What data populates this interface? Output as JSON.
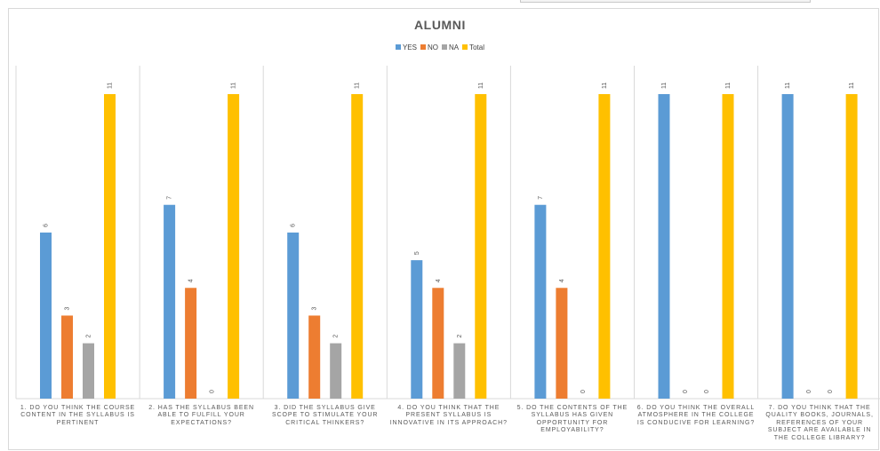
{
  "chart_data": {
    "type": "bar",
    "title": "ALUMNI",
    "categories": [
      "1. DO YOU THINK THE COURSE CONTENT IN THE SYLLABUS IS PERTINENT",
      "2. HAS THE SYLLABUS BEEN ABLE TO FULFILL YOUR EXPECTATIONS?",
      "3. DID THE SYLLABUS GIVE SCOPE TO STIMULATE YOUR CRITICAL THINKERS?",
      "4. DO YOU THINK THAT THE PRESENT SYLLABUS IS INNOVATIVE IN ITS APPROACH?",
      "5. DO THE CONTENTS OF THE SYLLABUS HAS GIVEN OPPORTUNITY FOR EMPLOYABILITY?",
      "6. DO YOU THINK THE OVERALL ATMOSPHERE IN THE COLLEGE IS CONDUCIVE FOR LEARNING?",
      "7. DO YOU THINK THAT THE QUALITY BOOKS, JOURNALS, REFERENCES OF YOUR SUBJECT ARE AVAILABLE IN THE COLLEGE LIBRARY?"
    ],
    "series": [
      {
        "name": "YES",
        "color": "#5b9bd5",
        "values": [
          6,
          7,
          6,
          5,
          7,
          11,
          11
        ],
        "labels": [
          "6",
          "7",
          "6",
          "5",
          "7",
          "11",
          "11"
        ]
      },
      {
        "name": "NO",
        "color": "#ed7d31",
        "values": [
          3,
          4,
          3,
          4,
          4,
          0,
          0
        ],
        "labels": [
          "3",
          "4",
          "3",
          "4",
          "4",
          "0",
          "0"
        ]
      },
      {
        "name": "NA",
        "color": "#a5a5a5",
        "values": [
          2,
          0,
          2,
          2,
          0,
          0,
          0
        ],
        "labels": [
          "2",
          "0",
          "2",
          "2",
          "0",
          "0",
          "0"
        ]
      },
      {
        "name": "Total",
        "color": "#ffc000",
        "values": [
          11,
          11,
          11,
          11,
          11,
          11,
          11
        ],
        "labels": [
          "11",
          "11",
          "11",
          "11",
          "11",
          "11",
          "11"
        ]
      }
    ],
    "ylim": [
      0,
      11
    ],
    "grid": "vertical category separators",
    "legend_position": "top"
  }
}
